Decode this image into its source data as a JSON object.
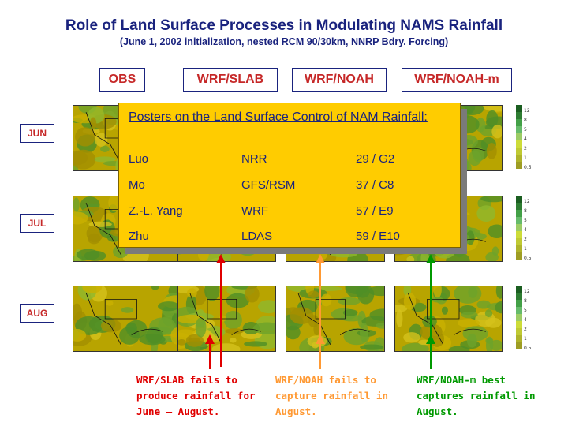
{
  "title": "Role of Land Surface Processes in Modulating NAMS Rainfall",
  "subtitle": "(June 1, 2002 initialization, nested RCM 90/30km, NNRP Bdry. Forcing)",
  "columns": [
    "OBS",
    "WRF/SLAB",
    "WRF/NOAH",
    "WRF/NOAH-m"
  ],
  "rows": [
    "JUN",
    "JUL",
    "AUG"
  ],
  "colorbar_ticks": [
    "12",
    "8",
    "5",
    "4",
    "2",
    "1",
    "0.5"
  ],
  "popup": {
    "title": "Posters on the Land Surface Control of NAM Rainfall:",
    "entries": [
      {
        "name": "Luo",
        "group": "NRR",
        "poster": "29 / G2"
      },
      {
        "name": "Mo",
        "group": "GFS/RSM",
        "poster": "37 / C8"
      },
      {
        "name": "Z.-L. Yang",
        "group": "WRF",
        "poster": "57 / E9"
      },
      {
        "name": "Zhu",
        "group": "LDAS",
        "poster": "59 / E10"
      }
    ]
  },
  "notes": [
    {
      "color": "#e00000",
      "lines": [
        "WRF/SLAB fails to",
        "produce rainfall for",
        "June – August."
      ]
    },
    {
      "color": "#ff9933",
      "lines": [
        "WRF/NOAH fails to",
        "capture rainfall in",
        "August."
      ]
    },
    {
      "color": "#009900",
      "lines": [
        "WRF/NOAH-m best",
        "captures rainfall in",
        "August."
      ]
    }
  ],
  "colors": {
    "title": "#1a237e",
    "labels": "#c62828",
    "popup_bg": "#ffcc00",
    "slab": "#e00000",
    "noah": "#ff9933",
    "noahm": "#009900"
  }
}
